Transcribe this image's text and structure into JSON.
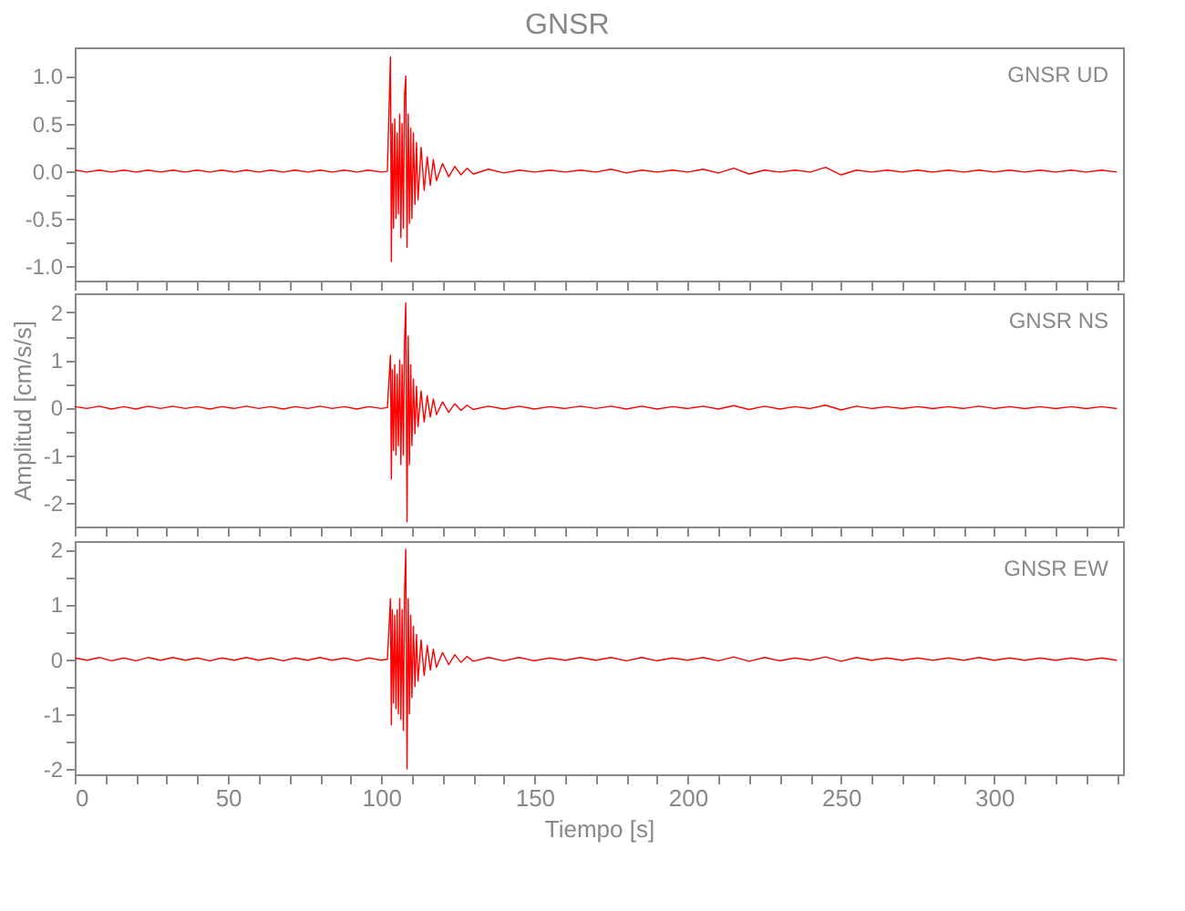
{
  "chart_data": [
    {
      "type": "line",
      "title": "GNSR",
      "annotations": [
        "GNSR  UD"
      ],
      "tick_labels": "y",
      "grid": false,
      "xlim": [
        0,
        342
      ],
      "xticks": [
        0,
        {
          "value": 10,
          "label": null
        },
        {
          "value": 20,
          "label": null
        },
        {
          "value": 30,
          "label": null
        },
        {
          "value": 40,
          "label": null
        },
        50,
        {
          "value": 60,
          "label": null
        },
        {
          "value": 70,
          "label": null
        },
        {
          "value": 80,
          "label": null
        },
        {
          "value": 90,
          "label": null
        },
        100,
        {
          "value": 110,
          "label": null
        },
        {
          "value": 120,
          "label": null
        },
        {
          "value": 130,
          "label": null
        },
        {
          "value": 140,
          "label": null
        },
        150,
        {
          "value": 160,
          "label": null
        },
        {
          "value": 170,
          "label": null
        },
        {
          "value": 180,
          "label": null
        },
        {
          "value": 190,
          "label": null
        },
        200,
        {
          "value": 210,
          "label": null
        },
        {
          "value": 220,
          "label": null
        },
        {
          "value": 230,
          "label": null
        },
        {
          "value": 240,
          "label": null
        },
        250,
        {
          "value": 260,
          "label": null
        },
        {
          "value": 270,
          "label": null
        },
        {
          "value": 280,
          "label": null
        },
        {
          "value": 290,
          "label": null
        },
        300,
        {
          "value": 310,
          "label": null
        },
        {
          "value": 320,
          "label": null
        },
        {
          "value": 330,
          "label": null
        },
        {
          "value": 340,
          "label": null
        }
      ],
      "ylim": [
        -1.15,
        1.3
      ],
      "yticks": [
        {
          "value": -1,
          "label": "-1.0"
        },
        {
          "value": -0.75,
          "label": null
        },
        {
          "value": -0.5,
          "label": "-0.5"
        },
        {
          "value": -0.25,
          "label": null
        },
        {
          "value": 0,
          "label": "0.0"
        },
        {
          "value": 0.25,
          "label": null
        },
        {
          "value": 0.5,
          "label": "0.5"
        },
        {
          "value": 0.75,
          "label": null
        },
        {
          "value": 1,
          "label": "1.0"
        }
      ],
      "series": [
        {
          "color": "#ff0000",
          "x": [
            0,
            4,
            8,
            12,
            16,
            20,
            24,
            28,
            32,
            36,
            40,
            44,
            48,
            52,
            56,
            60,
            64,
            68,
            72,
            76,
            80,
            84,
            88,
            92,
            96,
            100,
            102,
            103,
            103.3,
            103.6,
            104,
            104.4,
            104.8,
            105.2,
            105.6,
            106,
            106.4,
            106.8,
            107.2,
            107.6,
            108,
            108.4,
            108.8,
            109.2,
            109.6,
            110,
            110.5,
            111,
            111.5,
            112,
            113,
            114,
            115,
            116,
            117,
            118,
            120,
            122,
            124,
            126,
            128,
            130,
            135,
            140,
            145,
            150,
            155,
            160,
            165,
            170,
            175,
            180,
            185,
            190,
            195,
            200,
            205,
            210,
            215,
            220,
            225,
            230,
            235,
            240,
            245,
            250,
            255,
            260,
            265,
            270,
            275,
            280,
            285,
            290,
            295,
            300,
            305,
            310,
            315,
            320,
            325,
            330,
            335,
            340
          ],
          "values": [
            0.01,
            -0.01,
            0.01,
            -0.01,
            0.01,
            -0.01,
            0.01,
            -0.01,
            0.01,
            -0.01,
            0.01,
            -0.01,
            0.01,
            -0.01,
            0.01,
            -0.01,
            0.01,
            -0.01,
            0.01,
            -0.01,
            0.01,
            -0.01,
            0.01,
            -0.01,
            0.01,
            -0.01,
            0,
            1.2,
            -0.95,
            0.5,
            -0.6,
            0.55,
            -0.5,
            0.4,
            -0.45,
            0.6,
            -0.7,
            0.5,
            -0.6,
            0.8,
            1.0,
            -0.8,
            0.6,
            -0.55,
            0.45,
            -0.5,
            0.4,
            -0.35,
            0.3,
            -0.3,
            0.25,
            -0.2,
            0.15,
            -0.15,
            0.12,
            -0.1,
            0.08,
            -0.06,
            0.05,
            -0.04,
            0.03,
            -0.03,
            0.02,
            -0.02,
            0.01,
            -0.01,
            0.01,
            -0.01,
            0.01,
            -0.01,
            0.02,
            -0.02,
            0.01,
            -0.01,
            0.01,
            -0.01,
            0.02,
            -0.02,
            0.03,
            -0.03,
            0.01,
            -0.01,
            0.01,
            -0.01,
            0.04,
            -0.04,
            0.01,
            -0.01,
            0.01,
            -0.01,
            0.01,
            -0.01,
            0.01,
            -0.01,
            0.01,
            -0.01,
            0.01,
            -0.01,
            0.01,
            -0.01,
            0.01,
            -0.01,
            0.01,
            -0.01
          ]
        }
      ]
    },
    {
      "type": "line",
      "ylabel": "Amplitud [cm/s/s]",
      "annotations": [
        "GNSR  NS"
      ],
      "tick_labels": "y",
      "grid": false,
      "xlim": [
        0,
        342
      ],
      "xticks": [
        0,
        {
          "value": 10,
          "label": null
        },
        {
          "value": 20,
          "label": null
        },
        {
          "value": 30,
          "label": null
        },
        {
          "value": 40,
          "label": null
        },
        50,
        {
          "value": 60,
          "label": null
        },
        {
          "value": 70,
          "label": null
        },
        {
          "value": 80,
          "label": null
        },
        {
          "value": 90,
          "label": null
        },
        100,
        {
          "value": 110,
          "label": null
        },
        {
          "value": 120,
          "label": null
        },
        {
          "value": 130,
          "label": null
        },
        {
          "value": 140,
          "label": null
        },
        150,
        {
          "value": 160,
          "label": null
        },
        {
          "value": 170,
          "label": null
        },
        {
          "value": 180,
          "label": null
        },
        {
          "value": 190,
          "label": null
        },
        200,
        {
          "value": 210,
          "label": null
        },
        {
          "value": 220,
          "label": null
        },
        {
          "value": 230,
          "label": null
        },
        {
          "value": 240,
          "label": null
        },
        250,
        {
          "value": 260,
          "label": null
        },
        {
          "value": 270,
          "label": null
        },
        {
          "value": 280,
          "label": null
        },
        {
          "value": 290,
          "label": null
        },
        300,
        {
          "value": 310,
          "label": null
        },
        {
          "value": 320,
          "label": null
        },
        {
          "value": 330,
          "label": null
        },
        {
          "value": 340,
          "label": null
        }
      ],
      "ylim": [
        -2.5,
        2.4
      ],
      "yticks": [
        -2,
        {
          "value": -1.5,
          "label": null
        },
        -1,
        {
          "value": -0.5,
          "label": null
        },
        0,
        {
          "value": 0.5,
          "label": null
        },
        1,
        {
          "value": 1.5,
          "label": null
        },
        2
      ],
      "series": [
        {
          "color": "#ff0000",
          "x": [
            0,
            4,
            8,
            12,
            16,
            20,
            24,
            28,
            32,
            36,
            40,
            44,
            48,
            52,
            56,
            60,
            64,
            68,
            72,
            76,
            80,
            84,
            88,
            92,
            96,
            100,
            102,
            103,
            103.3,
            103.6,
            104,
            104.4,
            104.8,
            105.2,
            105.6,
            106,
            106.4,
            106.8,
            107.2,
            107.6,
            108,
            108.4,
            108.8,
            109.2,
            109.6,
            110,
            110.5,
            111,
            111.5,
            112,
            113,
            114,
            115,
            116,
            117,
            118,
            120,
            122,
            124,
            126,
            128,
            130,
            135,
            140,
            145,
            150,
            155,
            160,
            165,
            170,
            175,
            180,
            185,
            190,
            195,
            200,
            205,
            210,
            215,
            220,
            225,
            230,
            235,
            240,
            245,
            250,
            255,
            260,
            265,
            270,
            275,
            280,
            285,
            290,
            295,
            300,
            305,
            310,
            315,
            320,
            325,
            330,
            335,
            340
          ],
          "values": [
            0.02,
            -0.02,
            0.03,
            -0.03,
            0.02,
            -0.03,
            0.03,
            -0.02,
            0.03,
            -0.02,
            0.02,
            -0.03,
            0.02,
            -0.02,
            0.03,
            -0.02,
            0.02,
            -0.03,
            0.02,
            -0.02,
            0.03,
            -0.02,
            0.02,
            -0.03,
            0.02,
            -0.02,
            0,
            1.1,
            -1.5,
            0.8,
            -0.9,
            0.9,
            -1.0,
            0.7,
            -0.8,
            1.0,
            -1.2,
            0.9,
            -1.0,
            1.4,
            2.2,
            -2.4,
            1.5,
            -1.2,
            0.9,
            -0.8,
            0.6,
            -0.55,
            0.45,
            -0.4,
            0.35,
            -0.3,
            0.25,
            -0.2,
            0.18,
            -0.15,
            0.12,
            -0.1,
            0.08,
            -0.06,
            0.05,
            -0.04,
            0.03,
            -0.03,
            0.03,
            -0.03,
            0.02,
            -0.02,
            0.03,
            -0.02,
            0.03,
            -0.03,
            0.03,
            -0.03,
            0.02,
            -0.02,
            0.03,
            -0.03,
            0.04,
            -0.04,
            0.03,
            -0.03,
            0.02,
            -0.02,
            0.05,
            -0.05,
            0.03,
            -0.02,
            0.02,
            -0.02,
            0.02,
            -0.02,
            0.02,
            -0.02,
            0.03,
            -0.02,
            0.02,
            -0.02,
            0.02,
            -0.02,
            0.02,
            -0.02,
            0.02,
            -0.02
          ]
        }
      ]
    },
    {
      "type": "line",
      "xlabel": "Tiempo [s]",
      "annotations": [
        "GNSR  EW"
      ],
      "grid": false,
      "xlim": [
        0,
        342
      ],
      "xticks": [
        0,
        {
          "value": 10,
          "label": null
        },
        {
          "value": 20,
          "label": null
        },
        {
          "value": 30,
          "label": null
        },
        {
          "value": 40,
          "label": null
        },
        50,
        {
          "value": 60,
          "label": null
        },
        {
          "value": 70,
          "label": null
        },
        {
          "value": 80,
          "label": null
        },
        {
          "value": 90,
          "label": null
        },
        100,
        {
          "value": 110,
          "label": null
        },
        {
          "value": 120,
          "label": null
        },
        {
          "value": 130,
          "label": null
        },
        {
          "value": 140,
          "label": null
        },
        150,
        {
          "value": 160,
          "label": null
        },
        {
          "value": 170,
          "label": null
        },
        {
          "value": 180,
          "label": null
        },
        {
          "value": 190,
          "label": null
        },
        200,
        {
          "value": 210,
          "label": null
        },
        {
          "value": 220,
          "label": null
        },
        {
          "value": 230,
          "label": null
        },
        {
          "value": 240,
          "label": null
        },
        250,
        {
          "value": 260,
          "label": null
        },
        {
          "value": 270,
          "label": null
        },
        {
          "value": 280,
          "label": null
        },
        {
          "value": 290,
          "label": null
        },
        300,
        {
          "value": 310,
          "label": null
        },
        {
          "value": 320,
          "label": null
        },
        {
          "value": 330,
          "label": null
        },
        {
          "value": 340,
          "label": null
        }
      ],
      "ylim": [
        -2.1,
        2.15
      ],
      "yticks": [
        -2,
        {
          "value": -1.5,
          "label": null
        },
        -1,
        {
          "value": -0.5,
          "label": null
        },
        0,
        {
          "value": 0.5,
          "label": null
        },
        1,
        {
          "value": 1.5,
          "label": null
        },
        2
      ],
      "series": [
        {
          "color": "#ff0000",
          "x": [
            0,
            4,
            8,
            12,
            16,
            20,
            24,
            28,
            32,
            36,
            40,
            44,
            48,
            52,
            56,
            60,
            64,
            68,
            72,
            76,
            80,
            84,
            88,
            92,
            96,
            100,
            102,
            103,
            103.3,
            103.6,
            104,
            104.4,
            104.8,
            105.2,
            105.6,
            106,
            106.4,
            106.8,
            107.2,
            107.6,
            108,
            108.4,
            108.8,
            109.2,
            109.6,
            110,
            110.5,
            111,
            111.5,
            112,
            113,
            114,
            115,
            116,
            117,
            118,
            120,
            122,
            124,
            126,
            128,
            130,
            135,
            140,
            145,
            150,
            155,
            160,
            165,
            170,
            175,
            180,
            185,
            190,
            195,
            200,
            205,
            210,
            215,
            220,
            225,
            230,
            235,
            240,
            245,
            250,
            255,
            260,
            265,
            270,
            275,
            280,
            285,
            290,
            295,
            300,
            305,
            310,
            315,
            320,
            325,
            330,
            335,
            340
          ],
          "values": [
            0.02,
            -0.02,
            0.03,
            -0.03,
            0.02,
            -0.03,
            0.03,
            -0.02,
            0.03,
            -0.02,
            0.02,
            -0.03,
            0.02,
            -0.02,
            0.03,
            -0.02,
            0.02,
            -0.03,
            0.02,
            -0.02,
            0.03,
            -0.02,
            0.02,
            -0.03,
            0.02,
            -0.02,
            0,
            1.1,
            -1.2,
            0.9,
            -0.8,
            0.8,
            -0.9,
            0.9,
            -1.0,
            1.1,
            -1.1,
            0.9,
            -1.3,
            1.2,
            2.0,
            -2.0,
            1.1,
            -1.0,
            0.8,
            -0.7,
            0.6,
            -0.5,
            0.45,
            -0.4,
            0.35,
            -0.3,
            0.25,
            -0.2,
            0.18,
            -0.15,
            0.12,
            -0.1,
            0.08,
            -0.06,
            0.05,
            -0.04,
            0.03,
            -0.03,
            0.03,
            -0.03,
            0.02,
            -0.02,
            0.03,
            -0.02,
            0.03,
            -0.03,
            0.03,
            -0.03,
            0.02,
            -0.02,
            0.03,
            -0.03,
            0.04,
            -0.04,
            0.03,
            -0.03,
            0.02,
            -0.02,
            0.04,
            -0.04,
            0.03,
            -0.02,
            0.02,
            -0.02,
            0.02,
            -0.02,
            0.02,
            -0.02,
            0.03,
            -0.02,
            0.02,
            -0.02,
            0.02,
            -0.02,
            0.02,
            -0.02,
            0.02,
            -0.02
          ]
        }
      ]
    }
  ]
}
